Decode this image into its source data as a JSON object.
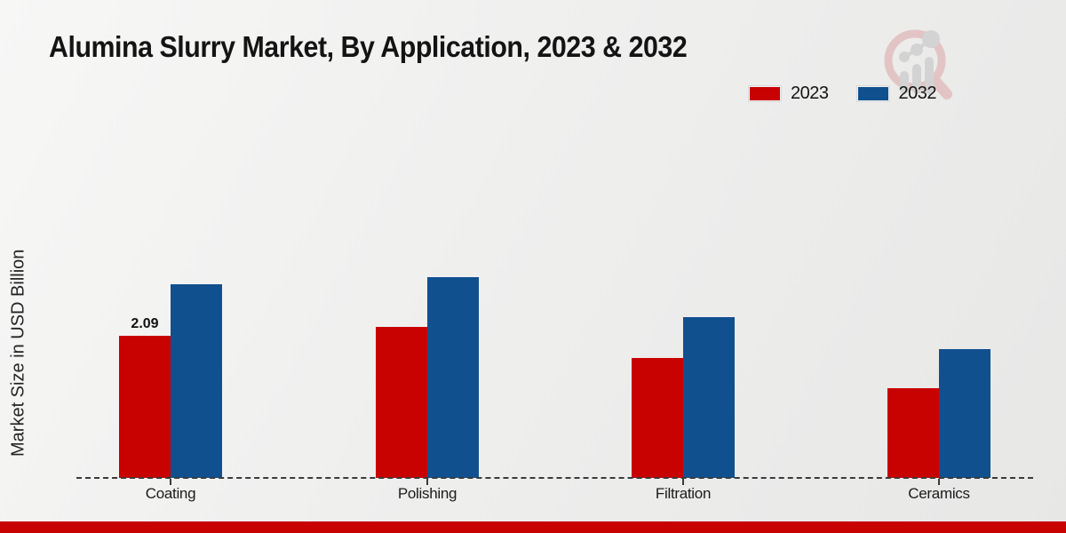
{
  "title": "Alumina Slurry Market, By Application, 2023 & 2032",
  "chart_data": {
    "type": "bar",
    "title": "Alumina Slurry Market, By Application, 2023 & 2032",
    "categories": [
      "Coating",
      "Polishing",
      "Filtration",
      "Ceramics"
    ],
    "series": [
      {
        "name": "2023",
        "color": "#c80101",
        "values": [
          2.09,
          2.22,
          1.76,
          1.32
        ]
      },
      {
        "name": "2032",
        "color": "#11508f",
        "values": [
          2.85,
          2.96,
          2.36,
          1.89
        ]
      }
    ],
    "xlabel": "",
    "ylabel": "Market Size in USD Billion",
    "ylim": [
      0,
      3.2
    ],
    "grid": false,
    "legend_position": "top-right",
    "axis_style": "dashed-baseline-only",
    "data_labels": [
      {
        "series": "2023",
        "category": "Coating",
        "text": "2.09"
      }
    ]
  },
  "icons": {
    "watermark": "magnifier-bar-chart-logo"
  },
  "colors": {
    "accent_red": "#c80101",
    "accent_blue": "#11508f",
    "baseline": "#3b3b3b",
    "watermark_ring": "#e3c4c4",
    "watermark_bars": "#d3d3d3"
  },
  "footer": {
    "accent_bar_color": "#c80101"
  }
}
